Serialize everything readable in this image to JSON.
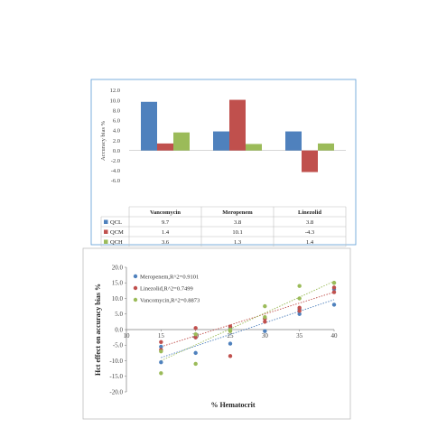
{
  "chart_data": [
    {
      "type": "bar",
      "ylabel": "Accuracy bias %",
      "ylim": [
        -6.0,
        12.0
      ],
      "yticks": [
        "12.0",
        "10.0",
        "8.0",
        "6.0",
        "4.0",
        "2.0",
        "0.0",
        "-2.0",
        "-4.0",
        "-6.0"
      ],
      "categories": [
        "Vancomycin",
        "Meropenem",
        "Linezolid"
      ],
      "series": [
        {
          "name": "QCL",
          "color": "#4f81bd",
          "values": [
            9.7,
            3.8,
            3.8
          ],
          "labels": [
            "9.7",
            "3.8",
            "3.8"
          ]
        },
        {
          "name": "QCM",
          "color": "#c0504d",
          "values": [
            1.4,
            10.1,
            -4.3
          ],
          "labels": [
            "1.4",
            "10.1",
            "-4.3"
          ]
        },
        {
          "name": "QCH",
          "color": "#9bbb59",
          "values": [
            3.6,
            1.3,
            1.4
          ],
          "labels": [
            "3.6",
            "1.3",
            "1.4"
          ]
        }
      ],
      "legend": "table-below"
    },
    {
      "type": "scatter",
      "xlabel": "% Hematocrit",
      "ylabel": "Hct effect on accuracy bias %",
      "xlim": [
        10,
        40
      ],
      "ylim": [
        -20,
        20
      ],
      "xticks": [
        "10",
        "15",
        "20",
        "25",
        "30",
        "35",
        "40"
      ],
      "yticks": [
        "20.0",
        "15.0",
        "10.0",
        "5.0",
        "0.0",
        "-5.0",
        "-10.0",
        "-15.0",
        "-20.0"
      ],
      "grid": false,
      "legend": "top-left",
      "series": [
        {
          "name": "Meropenem,R^2=0.9101",
          "color": "#4f81bd",
          "x": [
            15,
            15,
            20,
            20,
            25,
            25,
            30,
            30,
            35,
            35,
            40,
            40
          ],
          "y": [
            -10.5,
            -5.5,
            -7.5,
            -2.5,
            -4.5,
            0.5,
            -0.5,
            3.5,
            5.0,
            6.5,
            8.0,
            13.0
          ],
          "trend": [
            [
              15,
              -9.0
            ],
            [
              40,
              9.6
            ]
          ]
        },
        {
          "name": "Linezolid,R^2=0.7499",
          "color": "#c0504d",
          "x": [
            15,
            15,
            20,
            20,
            25,
            25,
            30,
            30,
            35,
            35,
            40,
            40
          ],
          "y": [
            -4.0,
            -6.5,
            0.5,
            -2.5,
            -8.5,
            1.0,
            3.5,
            2.5,
            7.0,
            6.0,
            12.0,
            13.5
          ],
          "trend": [
            [
              15,
              -5.5
            ],
            [
              40,
              12.0
            ]
          ]
        },
        {
          "name": "Vancomycin,R^2=0.8873",
          "color": "#9bbb59",
          "x": [
            15,
            15,
            20,
            20,
            25,
            25,
            30,
            30,
            35,
            35,
            40,
            40
          ],
          "y": [
            -14.0,
            -7.0,
            -11.0,
            -1.5,
            -0.5,
            0.0,
            4.0,
            7.5,
            10.0,
            14.0,
            15.0,
            15.0
          ],
          "trend": [
            [
              15,
              -10.0
            ],
            [
              40,
              15.5
            ]
          ]
        }
      ]
    }
  ]
}
